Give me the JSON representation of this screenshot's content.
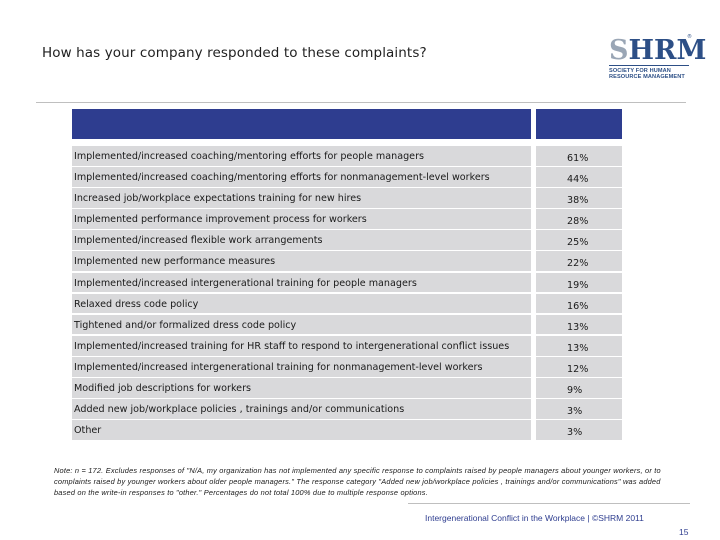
{
  "title": "How has your company responded to these complaints?",
  "logo": {
    "mark_s": "S",
    "mark_hrm": "HRM",
    "registered": "®",
    "line1": "SOCIETY FOR HUMAN",
    "line2": "RESOURCE MANAGEMENT"
  },
  "chart_data": {
    "type": "table",
    "title": "How has your company responded to these complaints?",
    "header": [
      "",
      ""
    ],
    "categories": [
      "Implemented/increased coaching/mentoring efforts for people managers",
      "Implemented/increased coaching/mentoring efforts for nonmanagement-level workers",
      "Increased job/workplace expectations training for new hires",
      "Implemented performance improvement process for workers",
      "Implemented/increased flexible work arrangements",
      "Implemented new performance measures",
      "Implemented/increased intergenerational training for people managers",
      "Relaxed dress code policy",
      "Tightened and/or formalized dress code policy",
      "Implemented/increased training for HR staff to respond to intergenerational conflict issues",
      "Implemented/increased intergenerational training for nonmanagement-level workers",
      "Modified job descriptions for workers",
      "Added new job/workplace policies , trainings and/or communications",
      "Other"
    ],
    "values": [
      61,
      44,
      38,
      28,
      25,
      22,
      19,
      16,
      13,
      13,
      12,
      9,
      3,
      3
    ],
    "value_labels": [
      "61%",
      "44%",
      "38%",
      "28%",
      "25%",
      "22%",
      "19%",
      "16%",
      "13%",
      "13%",
      "12%",
      "9%",
      "3%",
      "3%"
    ],
    "unit": "%"
  },
  "note": "Note: n = 172. Excludes responses of \"N/A, my organization has not implemented any specific response to complaints raised by people managers about younger workers, or to complaints raised by younger workers about older people managers.\" The response category \"Added new job/workplace policies , trainings and/or communications\" was added based on the write-in responses to \"other.\" Percentages do not total 100% due to multiple response options.",
  "footer": "Intergenerational Conflict in the Workplace | ©SHRM 2011",
  "page_number": "15",
  "colors": {
    "header_fill": "#2e3d8f",
    "row_fill": "#d9d9db",
    "brand_blue": "#2d4f86"
  }
}
